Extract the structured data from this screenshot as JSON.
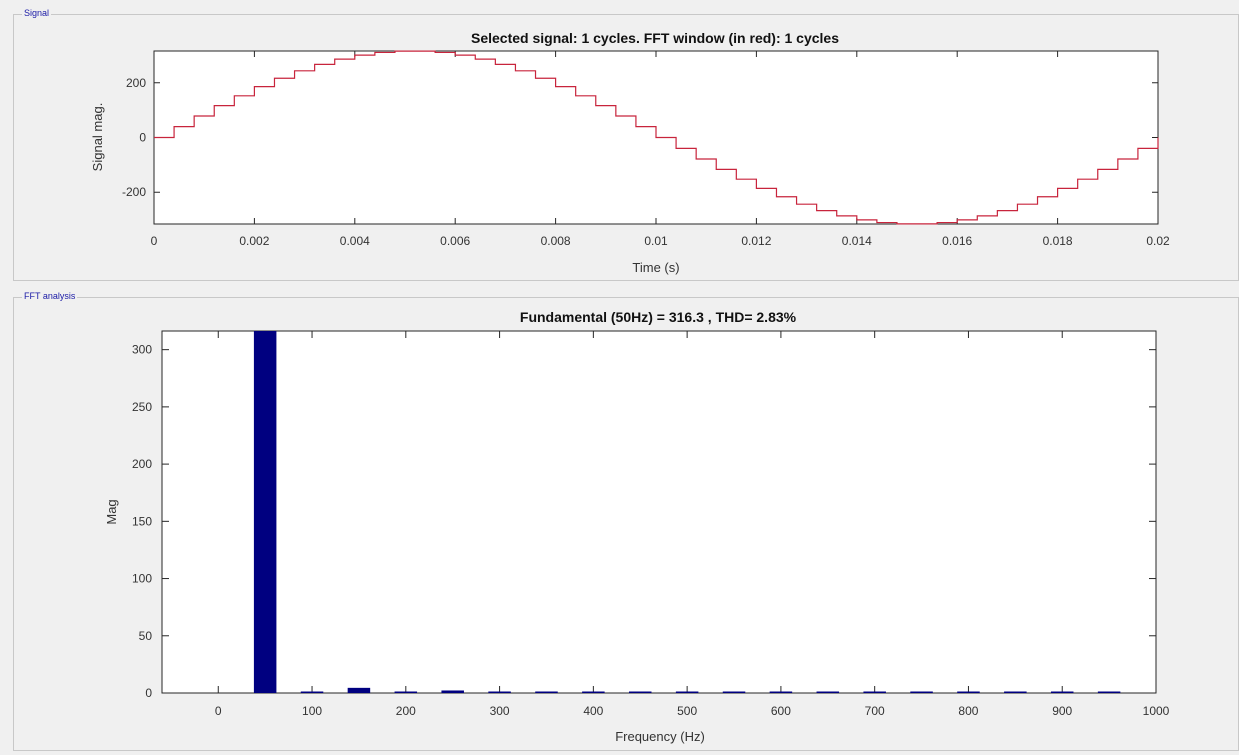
{
  "panels": {
    "signal": {
      "label": "Signal"
    },
    "fft": {
      "label": "FFT analysis"
    }
  },
  "chart_data": [
    {
      "type": "line",
      "title": "Selected signal: 1 cycles. FFT window (in red): 1 cycles",
      "xlabel": "Time (s)",
      "ylabel": "Signal mag.",
      "xlim": [
        0,
        0.02
      ],
      "ylim": [
        -316,
        316
      ],
      "xticks": [
        0,
        0.002,
        0.004,
        0.006,
        0.008,
        0.01,
        0.012,
        0.014,
        0.016,
        0.018,
        0.02
      ],
      "xtick_labels": [
        "0",
        "0.002",
        "0.004",
        "0.006",
        "0.008",
        "0.01",
        "0.012",
        "0.014",
        "0.016",
        "0.018",
        "0.02"
      ],
      "yticks": [
        -200,
        0,
        200
      ],
      "ytick_labels": [
        "-200",
        "0",
        "200"
      ],
      "grid": false,
      "series": [
        {
          "amplitude": 316.3,
          "frequency": 50,
          "step_count": 50,
          "color": "#c8243c"
        }
      ]
    },
    {
      "type": "bar",
      "title": "Fundamental (50Hz) = 316.3 , THD= 2.83%",
      "xlabel": "Frequency (Hz)",
      "ylabel": "Mag",
      "xlim": [
        -60,
        1000
      ],
      "ylim": [
        0,
        316.3
      ],
      "xticks": [
        0,
        100,
        200,
        300,
        400,
        500,
        600,
        700,
        800,
        900,
        1000
      ],
      "xtick_labels": [
        "0",
        "100",
        "200",
        "300",
        "400",
        "500",
        "600",
        "700",
        "800",
        "900",
        "1000"
      ],
      "yticks": [
        0,
        50,
        100,
        150,
        200,
        250,
        300
      ],
      "ytick_labels": [
        "0",
        "50",
        "100",
        "150",
        "200",
        "250",
        "300"
      ],
      "grid": false,
      "color": "#000080",
      "x": [
        0,
        50,
        100,
        150,
        200,
        250,
        300,
        350,
        400,
        450,
        500,
        550,
        600,
        650,
        700,
        750,
        800,
        850,
        900,
        950
      ],
      "values": [
        0,
        316.3,
        0.6,
        4.5,
        0.4,
        2.2,
        0.4,
        0.4,
        0.4,
        0.4,
        0.4,
        0.4,
        0.4,
        0.4,
        0.4,
        0.4,
        0.4,
        0.4,
        0.4,
        0.4
      ]
    }
  ]
}
